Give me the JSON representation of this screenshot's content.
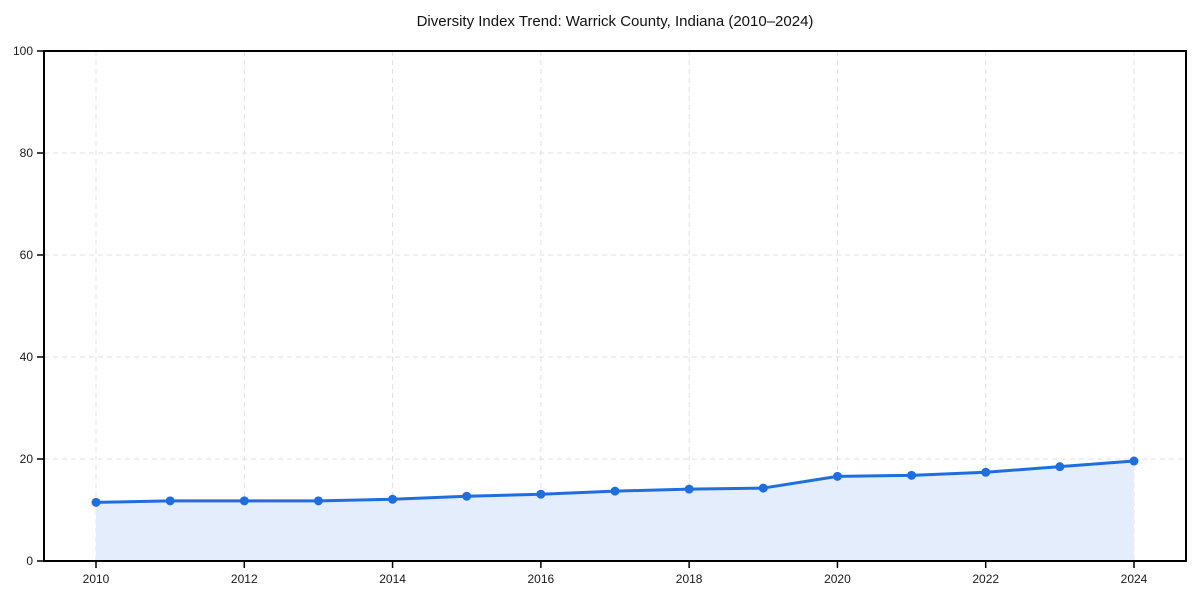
{
  "chart_data": {
    "type": "area",
    "title": "Diversity Index Trend: Warrick County, Indiana (2010–2024)",
    "x": [
      2010,
      2011,
      2012,
      2013,
      2014,
      2015,
      2016,
      2017,
      2018,
      2019,
      2020,
      2021,
      2022,
      2023,
      2024
    ],
    "values": [
      11.5,
      11.8,
      11.8,
      11.8,
      12.1,
      12.7,
      13.1,
      13.7,
      14.1,
      14.3,
      16.6,
      16.8,
      17.4,
      18.5,
      19.6
    ],
    "xlabel": "",
    "ylabel": "",
    "xlim": [
      2010,
      2024
    ],
    "ylim": [
      0,
      100
    ],
    "xticks": [
      2010,
      2012,
      2014,
      2016,
      2018,
      2020,
      2022,
      2024
    ],
    "yticks": [
      0,
      20,
      40,
      60,
      80,
      100
    ],
    "grid": "dashed",
    "legend": "none",
    "colors": {
      "line": "#1f6ee0",
      "marker": "#1f6ee0",
      "fill": "#e3edfb",
      "grid": "#e0e0e0",
      "axis": "#000000",
      "tick_text": "#1a1a1a",
      "background": "#ffffff"
    }
  }
}
